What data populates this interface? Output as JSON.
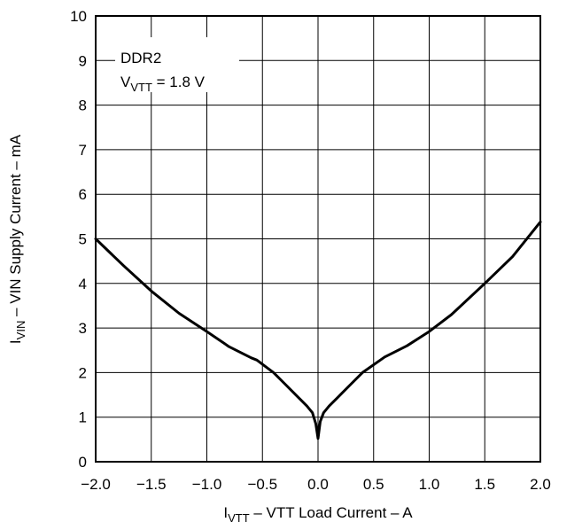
{
  "chart_data": {
    "type": "line",
    "xlabel": {
      "main": "I",
      "sub": "VTT",
      "rest": " – VTT Load Current – A"
    },
    "ylabel": {
      "main": "I",
      "sub": "VIN",
      "rest": " – VIN Supply Current – mA"
    },
    "xlim": [
      -2.0,
      2.0
    ],
    "ylim": [
      0,
      10
    ],
    "x_ticks": [
      -2.0,
      -1.5,
      -1.0,
      -0.5,
      0.0,
      0.5,
      1.0,
      1.5,
      2.0
    ],
    "x_tick_labels": [
      "−2.0",
      "−1.5",
      "−1.0",
      "−0.5",
      "0.0",
      "0.5",
      "1.0",
      "1.5",
      "2.0"
    ],
    "y_ticks": [
      0,
      1,
      2,
      3,
      4,
      5,
      6,
      7,
      8,
      9,
      10
    ],
    "y_tick_labels": [
      "0",
      "1",
      "2",
      "3",
      "4",
      "5",
      "6",
      "7",
      "8",
      "9",
      "10"
    ],
    "grid": true,
    "annotation": {
      "line1": "DDR2",
      "line2_main": "V",
      "line2_sub": "VTT",
      "line2_rest": " = 1.8 V"
    },
    "series": [
      {
        "color": "#000000",
        "x": [
          -2.0,
          -1.75,
          -1.5,
          -1.25,
          -1.0,
          -0.8,
          -0.6,
          -0.55,
          -0.4,
          -0.3,
          -0.2,
          -0.1,
          -0.05,
          -0.02,
          0.0,
          0.02,
          0.05,
          0.1,
          0.2,
          0.3,
          0.4,
          0.6,
          0.8,
          1.0,
          1.2,
          1.5,
          1.75,
          2.0
        ],
        "y": [
          5.0,
          4.4,
          3.83,
          3.33,
          2.92,
          2.58,
          2.33,
          2.28,
          2.0,
          1.75,
          1.5,
          1.25,
          1.1,
          0.85,
          0.52,
          0.9,
          1.1,
          1.25,
          1.5,
          1.75,
          2.0,
          2.35,
          2.6,
          2.92,
          3.3,
          4.0,
          4.6,
          5.38
        ]
      }
    ]
  }
}
